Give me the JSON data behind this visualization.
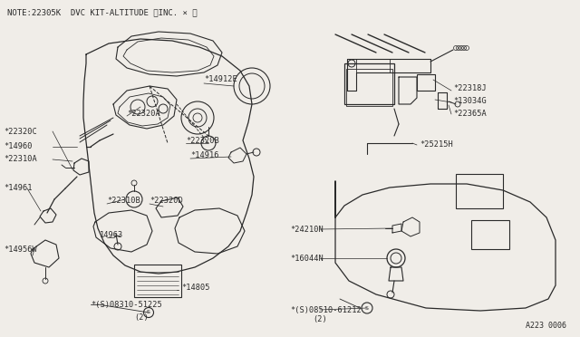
{
  "bg_color": "#f0ede8",
  "line_color": "#2a2a2a",
  "title": "NOTE㈢22305K DVC KIT-ALTITUDE （INC. × ）",
  "title2": "NOTE:22305K DVC KIT-ALTITUDE 〈INC. × 〉",
  "part_number": "A223 0006",
  "lw": 0.8
}
